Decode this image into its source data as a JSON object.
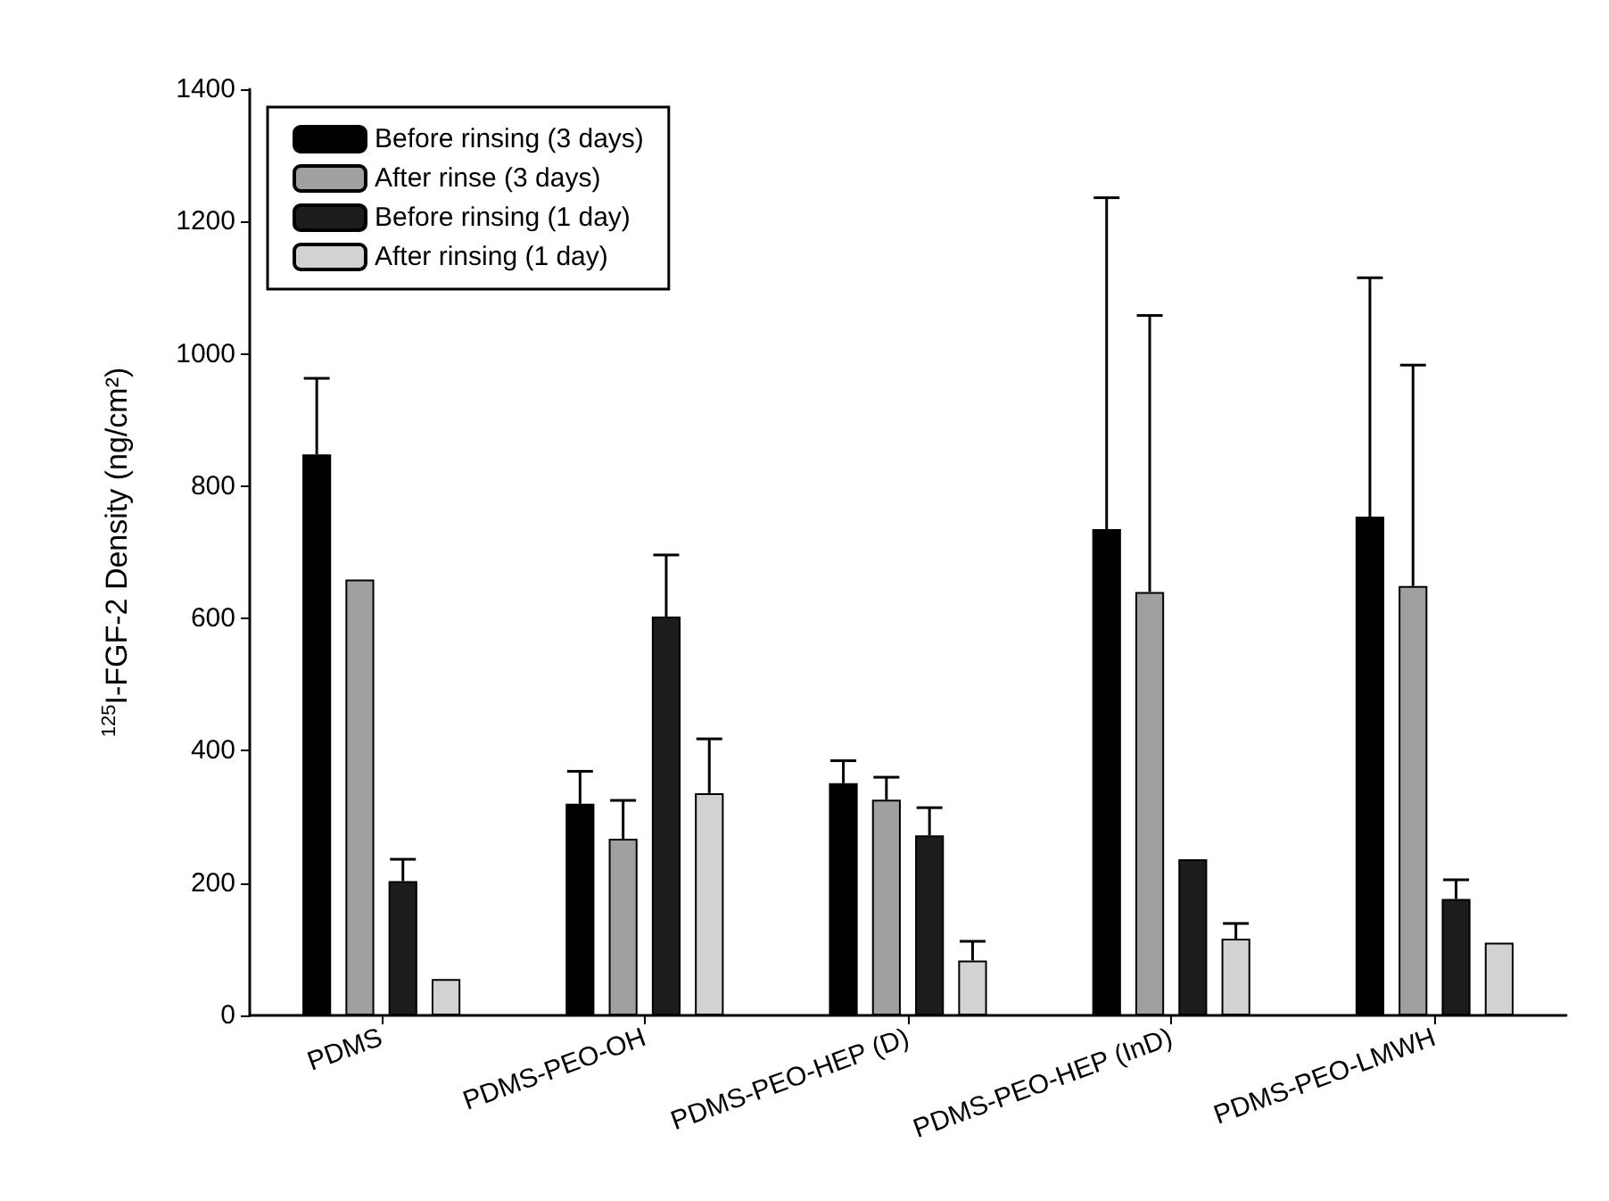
{
  "chart_data": {
    "type": "bar",
    "ylabel": "$^{125}$I-FGF-2 Density (ng/cm²)",
    "categories": [
      "PDMS",
      "PDMS-PEO-OH",
      "PDMS-PEO-HEP (D)",
      "PDMS-PEO-HEP (InD)",
      "PDMS-PEO-LMWH"
    ],
    "series": [
      {
        "name": "Before rinsing (3 days)",
        "color": "#000000",
        "values": [
          848,
          320,
          351,
          735,
          754
        ],
        "errors": [
          [
            848,
            963
          ],
          [
            320,
            369
          ],
          [
            351,
            385
          ],
          [
            735,
            1236
          ],
          [
            754,
            1115
          ]
        ]
      },
      {
        "name": "After rinse (3 days)",
        "color": "#a0a0a0",
        "values": [
          659,
          267,
          326,
          640,
          649
        ],
        "errors": [
          null,
          [
            267,
            325
          ],
          [
            326,
            360
          ],
          [
            640,
            1058
          ],
          [
            649,
            983
          ]
        ]
      },
      {
        "name": "Before rinsing (1 day)",
        "color": "#1c1c1c",
        "values": [
          203,
          603,
          272,
          236,
          176
        ],
        "errors": [
          [
            203,
            236
          ],
          [
            603,
            696
          ],
          [
            272,
            314
          ],
          null,
          [
            176,
            205
          ]
        ]
      },
      {
        "name": "After rinsing (1 day)",
        "color": "#d2d2d2",
        "values": [
          55,
          336,
          83,
          116,
          110
        ],
        "errors": [
          null,
          [
            336,
            418
          ],
          [
            83,
            112
          ],
          [
            116,
            139
          ],
          null
        ]
      }
    ],
    "ylim": [
      0,
      1400
    ],
    "yticks": [
      0,
      200,
      400,
      600,
      800,
      1000,
      1200,
      1400
    ],
    "grid": false,
    "legend": "top left"
  }
}
